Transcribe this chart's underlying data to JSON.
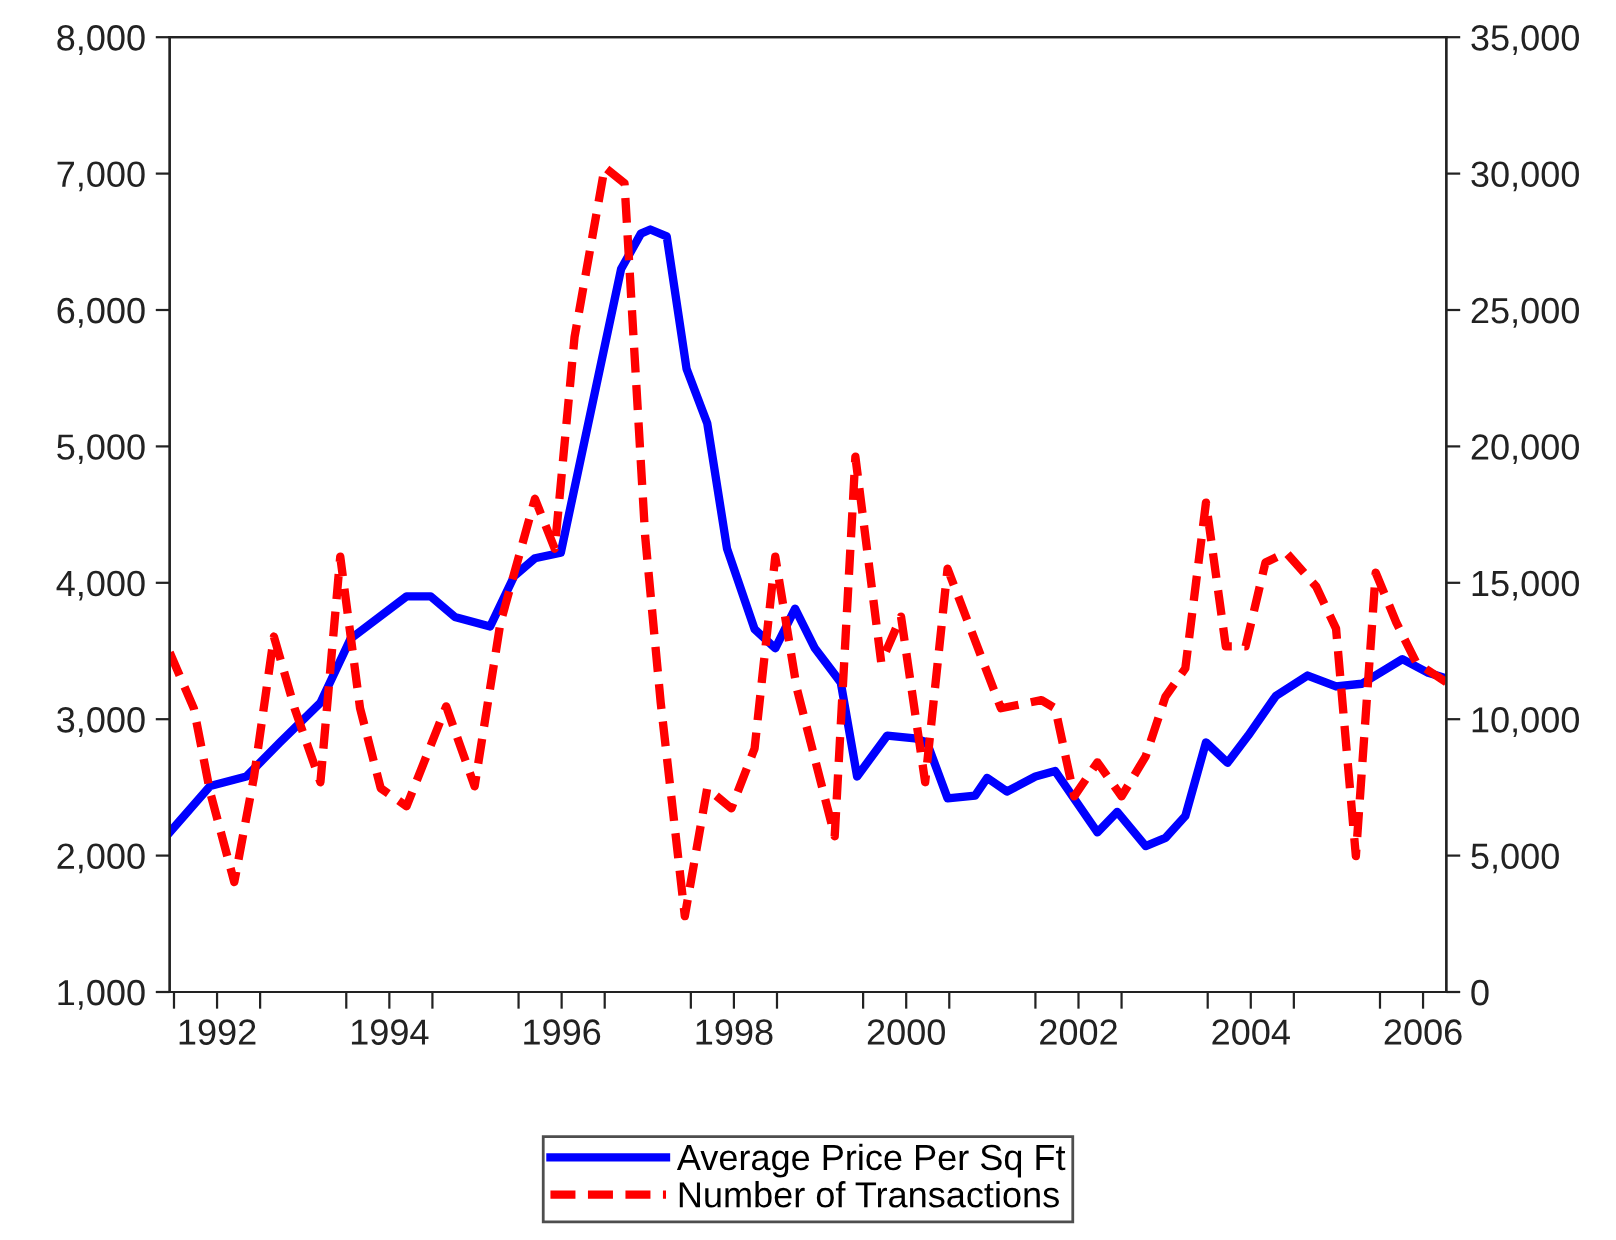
{
  "chart_data": {
    "type": "line",
    "series": [
      {
        "name": "Average Price Per Sq Ft",
        "color": "#0000ff",
        "line_style": "solid",
        "x": [
          1991.95,
          1992.42,
          1992.84,
          1993.23,
          1993.7,
          1994.05,
          1994.7,
          1994.98,
          1995.26,
          1995.67,
          1995.95,
          1996.19,
          1996.49,
          1997.19,
          1997.42,
          1997.53,
          1997.72,
          1997.95,
          1998.19,
          1998.42,
          1998.74,
          1998.98,
          1999.21,
          1999.44,
          1999.74,
          1999.93,
          2000.28,
          2000.6,
          2000.74,
          2000.98,
          2001.3,
          2001.44,
          2001.67,
          2002.0,
          2002.23,
          2002.72,
          2002.95,
          2003.28,
          2003.51,
          2003.74,
          2003.98,
          2004.23,
          2004.47,
          2004.79,
          2005.16,
          2005.49,
          2005.79,
          2006.26,
          2006.56,
          2006.77
        ],
        "values": [
          2170,
          2510,
          2580,
          2830,
          3120,
          3590,
          3900,
          3900,
          3750,
          3680,
          4050,
          4180,
          4220,
          6300,
          6560,
          6590,
          6540,
          5570,
          5170,
          4250,
          3660,
          3520,
          3810,
          3520,
          3270,
          2580,
          2880,
          2860,
          2830,
          2420,
          2440,
          2570,
          2470,
          2580,
          2620,
          2170,
          2320,
          2070,
          2130,
          2290,
          2830,
          2680,
          2880,
          3170,
          3320,
          3240,
          3260,
          3440,
          3340,
          3300
        ]
      },
      {
        "name": "Number of Transactions",
        "color": "#ff0000",
        "line_style": "dashed",
        "axis": "y2",
        "x": [
          1991.95,
          1992.23,
          1992.42,
          1992.7,
          1992.93,
          1993.16,
          1993.4,
          1993.7,
          1993.93,
          1994.16,
          1994.4,
          1994.7,
          1995.16,
          1995.49,
          1995.79,
          1996.19,
          1996.42,
          1996.65,
          1997.0,
          1997.23,
          1997.47,
          1997.65,
          1997.93,
          1998.19,
          1998.47,
          1998.74,
          1998.98,
          1999.23,
          1999.67,
          1999.91,
          2000.21,
          2000.44,
          2000.72,
          2000.98,
          2001.6,
          2002.07,
          2002.23,
          2002.45,
          2002.72,
          2003.0,
          2003.28,
          2003.51,
          2003.74,
          2003.98,
          2004.21,
          2004.44,
          2004.67,
          2004.91,
          2005.26,
          2005.49,
          2005.72,
          2005.95,
          2006.19,
          2006.42,
          2006.77
        ],
        "values": [
          12450,
          10400,
          7320,
          4030,
          7910,
          13030,
          10400,
          7690,
          15960,
          10400,
          7470,
          6810,
          10470,
          7540,
          13540,
          18080,
          16250,
          24010,
          30230,
          29650,
          16690,
          10610,
          2780,
          7470,
          6730,
          8930,
          15960,
          11130,
          5710,
          19620,
          12080,
          13760,
          7690,
          15520,
          10400,
          10700,
          10400,
          7170,
          8420,
          7170,
          8640,
          10830,
          11860,
          17940,
          12670,
          12670,
          15740,
          16110,
          14860,
          13320,
          4980,
          15370,
          13540,
          12080,
          11350
        ]
      }
    ],
    "xlim": [
      1991.95,
      2006.77
    ],
    "xticks": [
      {
        "value": 1992,
        "label": null
      },
      {
        "value": 1992.5,
        "label": "1992"
      },
      {
        "value": 1993,
        "label": null
      },
      {
        "value": 1994,
        "label": null
      },
      {
        "value": 1994.5,
        "label": "1994"
      },
      {
        "value": 1995,
        "label": null
      },
      {
        "value": 1996,
        "label": null
      },
      {
        "value": 1996.5,
        "label": "1996"
      },
      {
        "value": 1997,
        "label": null
      },
      {
        "value": 1998,
        "label": null
      },
      {
        "value": 1998.5,
        "label": "1998"
      },
      {
        "value": 1999,
        "label": null
      },
      {
        "value": 2000,
        "label": null
      },
      {
        "value": 2000.5,
        "label": "2000"
      },
      {
        "value": 2001,
        "label": null
      },
      {
        "value": 2002,
        "label": null
      },
      {
        "value": 2002.5,
        "label": "2002"
      },
      {
        "value": 2003,
        "label": null
      },
      {
        "value": 2004,
        "label": null
      },
      {
        "value": 2004.5,
        "label": "2004"
      },
      {
        "value": 2005,
        "label": null
      },
      {
        "value": 2006,
        "label": null
      },
      {
        "value": 2006.5,
        "label": "2006"
      }
    ],
    "ylim": [
      1000,
      8000
    ],
    "yticks": [
      {
        "value": 1000,
        "label": "1,000"
      },
      {
        "value": 2000,
        "label": "2,000"
      },
      {
        "value": 3000,
        "label": "3,000"
      },
      {
        "value": 4000,
        "label": "4,000"
      },
      {
        "value": 5000,
        "label": "5,000"
      },
      {
        "value": 6000,
        "label": "6,000"
      },
      {
        "value": 7000,
        "label": "7,000"
      },
      {
        "value": 8000,
        "label": "8,000"
      }
    ],
    "y2lim": [
      0,
      35000
    ],
    "y2ticks": [
      0,
      {
        "value": 5000,
        "label": "5,000"
      },
      {
        "value": 10000,
        "label": "10,000"
      },
      {
        "value": 15000,
        "label": "15,000"
      },
      {
        "value": 20000,
        "label": "20,000"
      },
      {
        "value": 25000,
        "label": "25,000"
      },
      {
        "value": 30000,
        "label": "30,000"
      },
      {
        "value": 35000,
        "label": "35,000"
      }
    ],
    "grid": false,
    "legend": "bottom"
  }
}
